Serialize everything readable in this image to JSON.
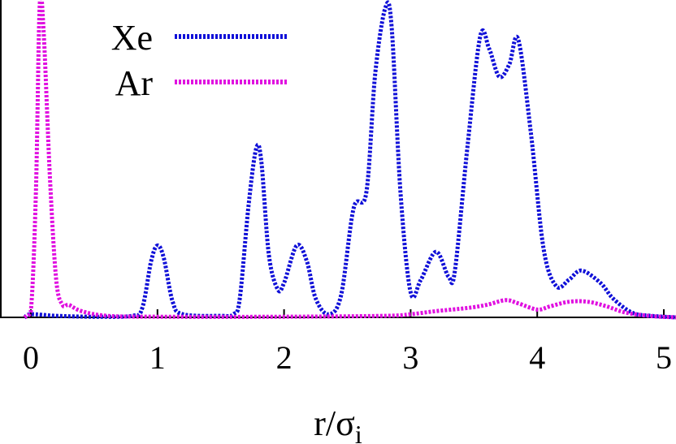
{
  "chart_data": {
    "type": "line",
    "xlabel": "r/σ",
    "xlabel_subscript": "i",
    "ylabel": "",
    "xlim": [
      -0.2,
      5.1
    ],
    "ylim": [
      0,
      1.0
    ],
    "grid": false,
    "legend_position": "top-left",
    "x_ticks": [
      "0",
      "1",
      "2",
      "3",
      "4",
      "5"
    ],
    "x_tick_values": [
      0,
      1,
      2,
      3,
      4,
      5
    ],
    "series": [
      {
        "name": "Xe",
        "color": "#1010d8",
        "line_style": "dotted",
        "points": [
          [
            -0.05,
            0.0
          ],
          [
            0.0,
            0.01
          ],
          [
            0.2,
            0.005
          ],
          [
            0.5,
            0.002
          ],
          [
            0.8,
            0.005
          ],
          [
            0.88,
            0.03
          ],
          [
            0.95,
            0.18
          ],
          [
            1.0,
            0.23
          ],
          [
            1.05,
            0.19
          ],
          [
            1.12,
            0.05
          ],
          [
            1.2,
            0.01
          ],
          [
            1.5,
            0.005
          ],
          [
            1.6,
            0.01
          ],
          [
            1.65,
            0.06
          ],
          [
            1.72,
            0.36
          ],
          [
            1.78,
            0.54
          ],
          [
            1.82,
            0.5
          ],
          [
            1.88,
            0.2
          ],
          [
            1.95,
            0.09
          ],
          [
            2.0,
            0.11
          ],
          [
            2.1,
            0.23
          ],
          [
            2.18,
            0.18
          ],
          [
            2.25,
            0.06
          ],
          [
            2.35,
            0.01
          ],
          [
            2.45,
            0.07
          ],
          [
            2.55,
            0.35
          ],
          [
            2.65,
            0.4
          ],
          [
            2.72,
            0.78
          ],
          [
            2.8,
            0.99
          ],
          [
            2.85,
            0.93
          ],
          [
            2.92,
            0.4
          ],
          [
            3.0,
            0.08
          ],
          [
            3.08,
            0.12
          ],
          [
            3.2,
            0.21
          ],
          [
            3.3,
            0.13
          ],
          [
            3.35,
            0.15
          ],
          [
            3.45,
            0.55
          ],
          [
            3.55,
            0.9
          ],
          [
            3.62,
            0.86
          ],
          [
            3.7,
            0.77
          ],
          [
            3.78,
            0.81
          ],
          [
            3.85,
            0.89
          ],
          [
            3.95,
            0.59
          ],
          [
            4.05,
            0.22
          ],
          [
            4.15,
            0.1
          ],
          [
            4.25,
            0.12
          ],
          [
            4.35,
            0.15
          ],
          [
            4.5,
            0.11
          ],
          [
            4.6,
            0.06
          ],
          [
            4.75,
            0.015
          ],
          [
            4.9,
            0.005
          ],
          [
            5.1,
            0.0
          ]
        ]
      },
      {
        "name": "Ar",
        "color": "#e010e0",
        "line_style": "dotted",
        "points": [
          [
            -0.05,
            0.0
          ],
          [
            0.0,
            0.02
          ],
          [
            0.04,
            0.4
          ],
          [
            0.07,
            1.0
          ],
          [
            0.1,
            0.92
          ],
          [
            0.15,
            0.45
          ],
          [
            0.2,
            0.12
          ],
          [
            0.25,
            0.04
          ],
          [
            0.3,
            0.04
          ],
          [
            0.4,
            0.02
          ],
          [
            0.6,
            0.005
          ],
          [
            1.0,
            0.002
          ],
          [
            2.0,
            0.002
          ],
          [
            2.8,
            0.005
          ],
          [
            3.0,
            0.01
          ],
          [
            3.2,
            0.02
          ],
          [
            3.45,
            0.03
          ],
          [
            3.6,
            0.04
          ],
          [
            3.75,
            0.055
          ],
          [
            3.85,
            0.045
          ],
          [
            4.0,
            0.025
          ],
          [
            4.1,
            0.035
          ],
          [
            4.25,
            0.05
          ],
          [
            4.4,
            0.05
          ],
          [
            4.55,
            0.035
          ],
          [
            4.7,
            0.015
          ],
          [
            4.9,
            0.004
          ],
          [
            5.1,
            0.0
          ]
        ]
      }
    ]
  }
}
